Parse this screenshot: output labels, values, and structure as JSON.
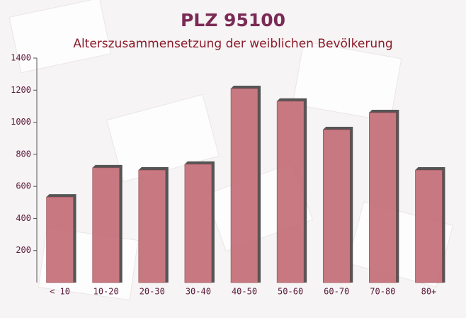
{
  "chart_data": {
    "type": "bar",
    "title": "PLZ 95100",
    "subtitle": "Alterszusammensetzung der weiblichen Bevölkerung",
    "categories": [
      "< 10",
      "10-20",
      "20-30",
      "30-40",
      "40-50",
      "50-60",
      "60-70",
      "70-80",
      "80+"
    ],
    "values": [
      534,
      716,
      702,
      738,
      1210,
      1131,
      954,
      1060,
      702
    ],
    "color": "#c0666f",
    "ylim": [
      0,
      1400
    ],
    "yticks": [
      200,
      400,
      600,
      800,
      1000,
      1200,
      1400
    ],
    "grid": false
  }
}
